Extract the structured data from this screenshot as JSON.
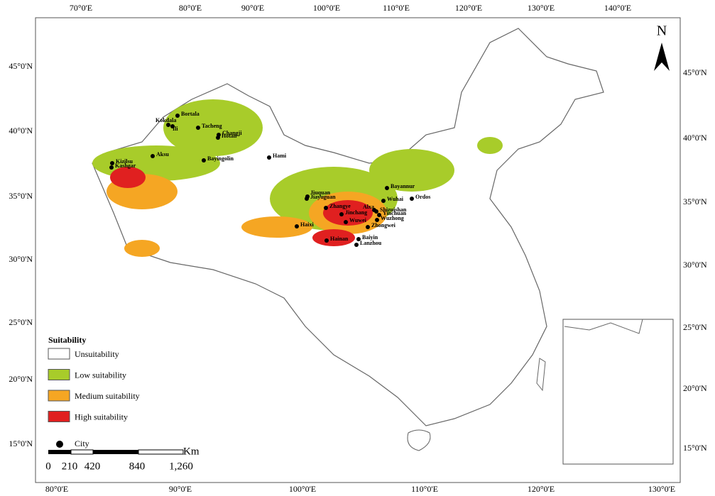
{
  "map": {
    "top_lon_labels": [
      "70°0'E",
      "80°0'E",
      "90°0'E",
      "100°0'E",
      "110°0'E",
      "120°0'E",
      "130°0'E",
      "140°0'E"
    ],
    "bottom_lon_labels": [
      "80°0'E",
      "90°0'E",
      "100°0'E",
      "110°0'E",
      "120°0'E",
      "130°0'E"
    ],
    "left_lat_labels": [
      "45°0'N",
      "40°0'N",
      "35°0'N",
      "30°0'N",
      "25°0'N",
      "20°0'N",
      "15°0'N"
    ],
    "right_lat_labels": [
      "45°0'N",
      "40°0'N",
      "35°0'N",
      "30°0'N",
      "25°0'N",
      "20°0'N",
      "15°0'N"
    ],
    "north": "N",
    "legend": {
      "title": "Suitability",
      "items": [
        {
          "label": "Unsuitability",
          "color": "#ffffff"
        },
        {
          "label": "Low suitability",
          "color": "#a8cc2a"
        },
        {
          "label": "Medium suitability",
          "color": "#f5a623"
        },
        {
          "label": "High suitability",
          "color": "#e02020"
        },
        {
          "label": "City",
          "color": "#000000"
        }
      ]
    },
    "scale": {
      "unit": "Km",
      "labels": [
        "0",
        "210",
        "420",
        "840",
        "1,260"
      ]
    },
    "cities": [
      "Bortala",
      "Kokdala",
      "Ili",
      "Tacheng",
      "Changji",
      "Hotan",
      "Aksu",
      "Bayingolin",
      "Hami",
      "Kizilsu",
      "Kashgar",
      "Jiuquan",
      "Jiayuguan",
      "Zhangye",
      "Jinchang",
      "Wuwei",
      "Haixi",
      "Hainan",
      "Baiyin",
      "Lanzhou",
      "Bayannur",
      "Wuhai",
      "Ordos",
      "Alxa",
      "Shizuishan",
      "Yinchuan",
      "Wuzhong",
      "Zhongwei"
    ]
  }
}
